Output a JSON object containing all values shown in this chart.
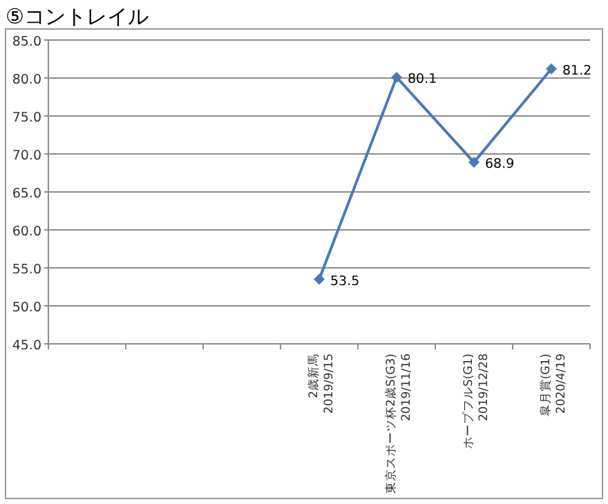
{
  "chart_data": {
    "type": "line",
    "title": "⑤コントレイル",
    "categories": [
      null,
      null,
      null,
      "2歳新馬\n2019/9/15",
      "東京スポーツ杯2歳S(G3)\n2019/11/16",
      "ホープフルS(G1)\n2019/12/28",
      "皐月賞(G1)\n2020/4/19"
    ],
    "series": [
      {
        "color": "#4a7ab5",
        "values": [
          null,
          null,
          null,
          53.5,
          80.1,
          68.9,
          81.2
        ]
      }
    ],
    "ylim": [
      45,
      85
    ],
    "yticks": [
      {
        "value": 45,
        "label": "45.0"
      },
      {
        "value": 50,
        "label": "50.0"
      },
      {
        "value": 55,
        "label": "55.0"
      },
      {
        "value": 60,
        "label": "60.0"
      },
      {
        "value": 65,
        "label": "65.0"
      },
      {
        "value": 70,
        "label": "70.0"
      },
      {
        "value": 75,
        "label": "75.0"
      },
      {
        "value": 80,
        "label": "80.0"
      },
      {
        "value": 85,
        "label": "85.0"
      }
    ],
    "grid": "y",
    "marker": "diamond",
    "data_labels": true
  }
}
